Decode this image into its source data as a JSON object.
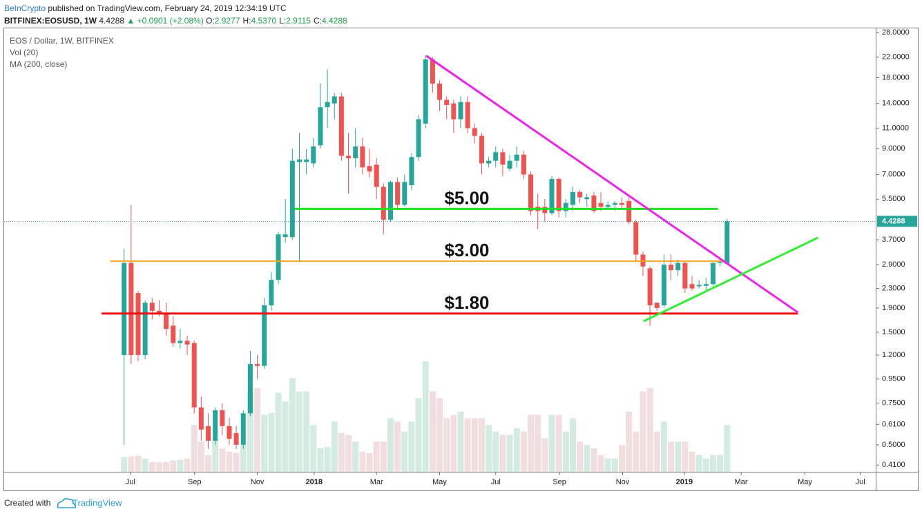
{
  "header": {
    "author": "BeInCrypto",
    "published": "published on TradingView.com, February 24, 2019 12:34:19 UTC",
    "symbol": "BITFINEX:EOSUSD, 1W",
    "last": "4.4288",
    "arrow": "▲",
    "change": "+0.0901 (+2.08%)",
    "ohlc": [
      {
        "label": "O:",
        "value": "2.9277"
      },
      {
        "label": "H:",
        "value": "4.5370"
      },
      {
        "label": "L:",
        "value": "2.9115"
      },
      {
        "label": "C:",
        "value": "4.4288"
      }
    ]
  },
  "chart_data": {
    "type": "candlestick",
    "log_scale": true,
    "grid": false,
    "categories": [
      null,
      null,
      null,
      null,
      null,
      null,
      null,
      null,
      null,
      null,
      null,
      null,
      null,
      null,
      null,
      null,
      null,
      null,
      null,
      null,
      null,
      null,
      null,
      null,
      null,
      null,
      null,
      null,
      null,
      null,
      null,
      null,
      null,
      null,
      null,
      null,
      null,
      null,
      null,
      null,
      null,
      null,
      null,
      null,
      null,
      null,
      null,
      null,
      null,
      null,
      null,
      null,
      null,
      null,
      null,
      null,
      null,
      null,
      null,
      null,
      null,
      null,
      null,
      null,
      null,
      null,
      null,
      null,
      null,
      null,
      null,
      null,
      null,
      null,
      null,
      null,
      null,
      null,
      null,
      null,
      null,
      null,
      null,
      null,
      null,
      null,
      null
    ],
    "series": [
      {
        "name": "EOS / Dollar, 1W, BITFINEX",
        "up_color": "#26a69a",
        "down_color": "#ef5350",
        "open": [
          1.2,
          2.95,
          2.2,
          1.2,
          2.0,
          1.85,
          1.8,
          1.6,
          1.35,
          1.38,
          1.35,
          0.72,
          0.6,
          0.52,
          0.7,
          0.6,
          0.56,
          0.5,
          0.68,
          1.1,
          1.08,
          1.95,
          2.5,
          3.8,
          3.8,
          7.9,
          7.9,
          7.8,
          9.3,
          13.5,
          14,
          15,
          8.4,
          8.2,
          9.2,
          7.6,
          7.7,
          6.2,
          4.5,
          6.5,
          5.2,
          6.3,
          8.3,
          11.5,
          21.5,
          17,
          14.5,
          14,
          12,
          14.2,
          11,
          10.2,
          7.8,
          8.0,
          8.7,
          7.4,
          8.0,
          8.5,
          7.0,
          5.1,
          5.1,
          4.8,
          6.7,
          4.9,
          5.2,
          5.9,
          5.5,
          5.7,
          5.3,
          5.1,
          5.2,
          5.3,
          5.4,
          4.4,
          3.2,
          2.8,
          2.0,
          1.95,
          2.9,
          2.75,
          2.95,
          2.4,
          2.35,
          2.36,
          2.4,
          2.95,
          2.9277
        ],
        "high": [
          3.4,
          5.2,
          2.25,
          2.05,
          2.1,
          2.05,
          2.0,
          1.75,
          1.55,
          1.45,
          1.38,
          0.8,
          0.68,
          0.72,
          0.75,
          0.65,
          0.6,
          0.7,
          1.25,
          1.2,
          2.1,
          2.7,
          4.0,
          5.5,
          9.0,
          10.5,
          9.0,
          10.0,
          17.0,
          19.5,
          15.5,
          15.5,
          10.5,
          11,
          10,
          9,
          8.2,
          6.4,
          6.6,
          6.8,
          7.0,
          8.6,
          12.5,
          22.5,
          22,
          17.5,
          15,
          14.5,
          15,
          15,
          11.5,
          10.5,
          8.3,
          9.2,
          9,
          8.5,
          9.2,
          8.8,
          7.2,
          5.8,
          5.5,
          6.9,
          6.8,
          5.5,
          6.2,
          6.0,
          5.8,
          5.9,
          5.9,
          5.4,
          5.4,
          5.6,
          5.6,
          4.5,
          3.3,
          2.85,
          2.0,
          3.2,
          3.2,
          3.05,
          3.0,
          2.6,
          2.5,
          2.55,
          3.0,
          3.1,
          4.537
        ],
        "low": [
          0.5,
          1.1,
          1.13,
          1.15,
          1.7,
          1.75,
          1.45,
          1.3,
          1.28,
          1.2,
          0.68,
          0.52,
          0.48,
          0.5,
          0.55,
          0.5,
          0.48,
          0.48,
          0.66,
          0.95,
          1.05,
          1.85,
          2.4,
          3.6,
          3.7,
          3.0,
          7.0,
          7.5,
          9.0,
          11,
          12,
          8.0,
          5.8,
          7.5,
          7.0,
          6.8,
          5.5,
          3.9,
          4.4,
          5.0,
          5.1,
          6.0,
          8.0,
          11,
          15.5,
          13,
          12,
          10.5,
          11,
          10.5,
          9.5,
          7.0,
          7.5,
          7.5,
          6.9,
          7.2,
          7.5,
          6.7,
          4.7,
          4.1,
          4.4,
          4.7,
          4.6,
          4.6,
          4.9,
          5.3,
          5.1,
          4.8,
          4.9,
          5.0,
          4.9,
          5.0,
          4.3,
          3.0,
          2.6,
          1.6,
          1.85,
          1.9,
          2.5,
          2.6,
          2.2,
          2.25,
          2.3,
          2.25,
          2.35,
          2.85,
          2.9115
        ],
        "close": [
          2.95,
          1.2,
          1.2,
          2.0,
          1.85,
          1.8,
          1.55,
          1.35,
          1.38,
          1.33,
          0.72,
          0.58,
          0.52,
          0.7,
          0.6,
          0.53,
          0.5,
          0.68,
          1.1,
          1.08,
          1.95,
          2.5,
          3.9,
          3.9,
          8.0,
          8.1,
          8.1,
          9.2,
          13.5,
          14.2,
          15,
          8.4,
          8.2,
          9.2,
          7.5,
          7.2,
          6.2,
          4.5,
          6.5,
          5.2,
          6.5,
          8.3,
          12,
          21.5,
          17,
          14.5,
          13.8,
          12,
          14.2,
          11,
          10.2,
          7.8,
          8.0,
          8.7,
          7.7,
          8.0,
          8.5,
          7.0,
          4.9,
          4.9,
          4.8,
          6.7,
          4.9,
          5.3,
          5.9,
          5.6,
          5.6,
          4.9,
          5.1,
          5.2,
          5.3,
          5.2,
          4.4,
          3.2,
          2.85,
          1.95,
          1.9,
          2.9,
          2.75,
          2.95,
          2.3,
          2.3,
          2.38,
          2.4,
          2.95,
          3.0,
          4.4288
        ]
      }
    ],
    "volume": {
      "name": "Vol (20)",
      "up_color": "#d4ebe2",
      "down_color": "#f1dfe0",
      "values": [
        22,
        23,
        24,
        20,
        15,
        14,
        15,
        17,
        18,
        20,
        70,
        45,
        25,
        48,
        35,
        30,
        28,
        40,
        120,
        125,
        85,
        88,
        118,
        105,
        140,
        120,
        120,
        70,
        35,
        37,
        75,
        58,
        55,
        45,
        30,
        28,
        45,
        45,
        80,
        75,
        60,
        75,
        110,
        165,
        120,
        110,
        80,
        85,
        90,
        80,
        80,
        80,
        70,
        60,
        55,
        55,
        65,
        60,
        85,
        85,
        50,
        85,
        85,
        60,
        80,
        45,
        40,
        35,
        25,
        20,
        20,
        40,
        90,
        60,
        120,
        125,
        60,
        75,
        45,
        45,
        45,
        30,
        25,
        20,
        25,
        25,
        70
      ]
    },
    "indicators": [
      "MA (200, close)"
    ],
    "ylim": [
      0.384,
      29.35
    ],
    "yticks": [
      {
        "value": 28,
        "label": "28.0000"
      },
      {
        "value": 22,
        "label": "22.0000"
      },
      {
        "value": 18,
        "label": "18.0000"
      },
      {
        "value": 14,
        "label": "14.0000"
      },
      {
        "value": 11,
        "label": "11.0000"
      },
      {
        "value": 9,
        "label": "9.0000"
      },
      {
        "value": 7,
        "label": "7.0000"
      },
      {
        "value": 5.5,
        "label": "5.5000"
      },
      {
        "value": 3.7,
        "label": "3.7000"
      },
      {
        "value": 2.9,
        "label": "2.9000"
      },
      {
        "value": 2.3,
        "label": "2.3000"
      },
      {
        "value": 1.9,
        "label": "1.9000"
      },
      {
        "value": 1.5,
        "label": "1.5000"
      },
      {
        "value": 1.2,
        "label": "1.2000"
      },
      {
        "value": 0.95,
        "label": "0.9500"
      },
      {
        "value": 0.75,
        "label": "0.7500"
      },
      {
        "value": 0.61,
        "label": "0.6100"
      },
      {
        "value": 0.5,
        "label": "0.5000"
      },
      {
        "value": 0.41,
        "label": "0.4100"
      }
    ],
    "xlim": [
      -17.7,
      107.2
    ],
    "xticks": [
      {
        "value": 0.9,
        "label": "Jul"
      },
      {
        "value": 10.05,
        "label": "Sep"
      },
      {
        "value": 19,
        "label": "Nov"
      },
      {
        "value": 27.1,
        "label": "2018"
      },
      {
        "value": 36,
        "label": "Mar"
      },
      {
        "value": 45,
        "label": "May"
      },
      {
        "value": 53,
        "label": "Jul"
      },
      {
        "value": 62.1,
        "label": "Sep"
      },
      {
        "value": 71.1,
        "label": "Nov"
      },
      {
        "value": 79.9,
        "label": "2019"
      },
      {
        "value": 88,
        "label": "Mar"
      },
      {
        "value": 97.1,
        "label": "May"
      },
      {
        "value": 105,
        "label": "Jul"
      }
    ],
    "last_price": 4.4288,
    "last_price_color": "#26a69a",
    "last_line_color": "#2f7fa8",
    "levels": [
      {
        "text": "$5.00",
        "value": 5.0,
        "x": [
          24.3,
          84.7
        ],
        "color": "#22e022"
      },
      {
        "text": "$3.00",
        "value": 3.0,
        "x": [
          -2,
          85.7
        ],
        "color": "#f5a623"
      },
      {
        "text": "$1.80",
        "value": 1.8,
        "x": [
          -3.2,
          96.1
        ],
        "color": "#ee1111"
      }
    ],
    "trendlines": [
      {
        "color": "#ee22ee",
        "points": [
          {
            "x": 43.1,
            "y": 22.3
          },
          {
            "x": 96.1,
            "y": 1.82
          }
        ]
      },
      {
        "color": "#33ee33",
        "points": [
          {
            "x": 74.1,
            "y": 1.67
          },
          {
            "x": 99.0,
            "y": 3.78
          }
        ]
      }
    ]
  },
  "footer": {
    "prefix": "Created with",
    "brand": "TradingView"
  }
}
